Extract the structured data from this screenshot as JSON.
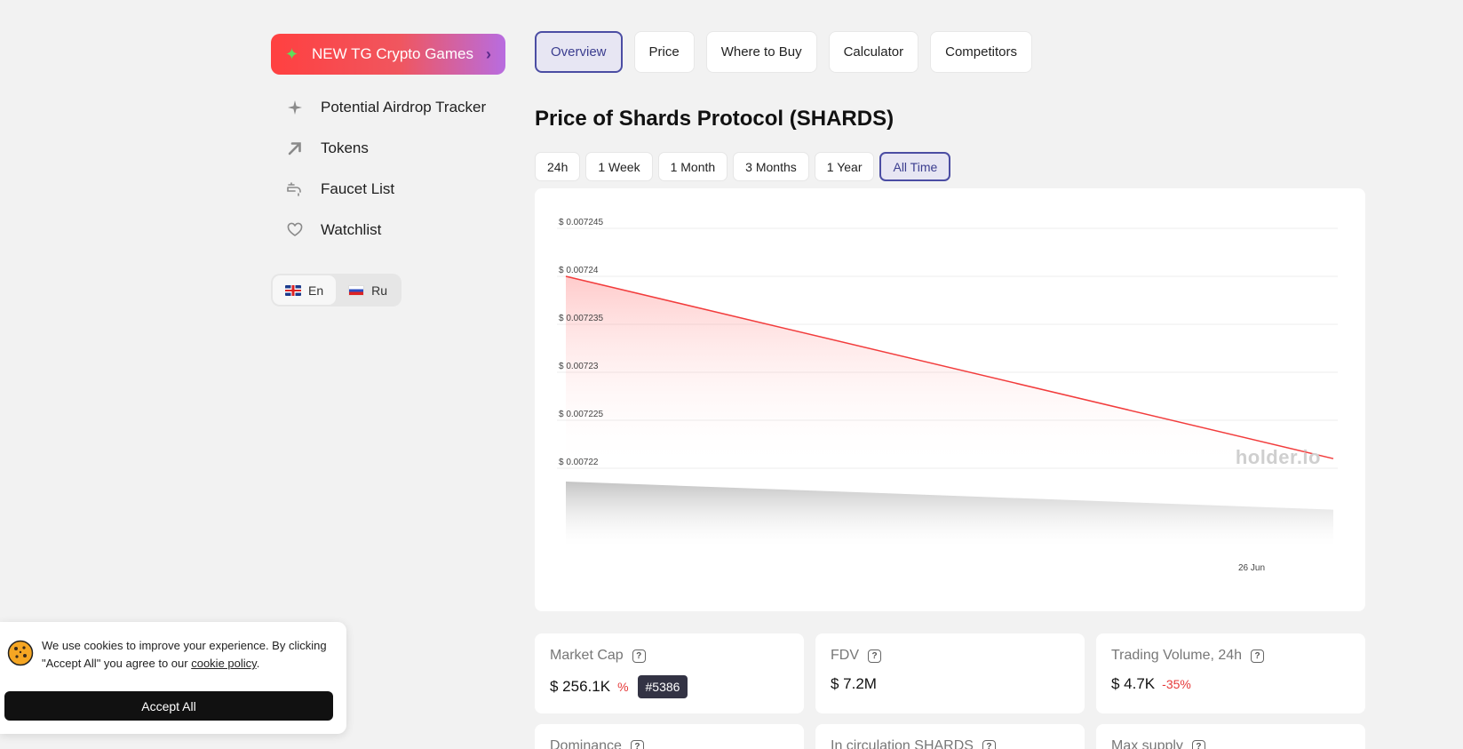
{
  "sidebar": {
    "promo": {
      "label": "NEW TG Crypto Games",
      "icon": "sparkle-icon"
    },
    "items": [
      {
        "label": "Potential Airdrop Tracker",
        "icon": "sparkle-icon"
      },
      {
        "label": "Tokens",
        "icon": "arrow-up-right-icon"
      },
      {
        "label": "Faucet List",
        "icon": "faucet-icon"
      },
      {
        "label": "Watchlist",
        "icon": "heart-icon"
      }
    ],
    "languages": [
      {
        "label": "En",
        "active": true
      },
      {
        "label": "Ru",
        "active": false
      }
    ]
  },
  "tabs": [
    {
      "label": "Overview",
      "active": true
    },
    {
      "label": "Price",
      "active": false
    },
    {
      "label": "Where to Buy",
      "active": false
    },
    {
      "label": "Calculator",
      "active": false
    },
    {
      "label": "Competitors",
      "active": false
    }
  ],
  "page_title": "Price of Shards Protocol (SHARDS)",
  "ranges": [
    {
      "label": "24h",
      "active": false
    },
    {
      "label": "1 Week",
      "active": false
    },
    {
      "label": "1 Month",
      "active": false
    },
    {
      "label": "3 Months",
      "active": false
    },
    {
      "label": "1 Year",
      "active": false
    },
    {
      "label": "All Time",
      "active": true
    }
  ],
  "watermark": "holder.io",
  "chart_data": {
    "type": "area",
    "title": "",
    "x": [
      "",
      "26 Jun"
    ],
    "x_tick_labels": [
      "26 Jun"
    ],
    "y_tick_labels": [
      "$ 0.007245",
      "$ 0.00724",
      "$ 0.007235",
      "$ 0.00723",
      "$ 0.007225",
      "$ 0.00722"
    ],
    "y_ticks": [
      0.007245,
      0.00724,
      0.007235,
      0.00723,
      0.007225,
      0.00722
    ],
    "ylim": [
      0.00722,
      0.007245
    ],
    "series": [
      {
        "values": [
          0.00724,
          0.007221
        ],
        "color": "#f23c3c"
      }
    ],
    "volume": {
      "values": [
        1.0,
        0.56
      ],
      "color": "#c8c8c8"
    },
    "grid": true
  },
  "stats": [
    {
      "label": "Market Cap",
      "value": "$ 256.1K",
      "change": "%",
      "rank": "#5386"
    },
    {
      "label": "FDV",
      "value": "$ 7.2M"
    },
    {
      "label": "Trading Volume, 24h",
      "value": "$ 4.7K",
      "change": "-35%"
    },
    {
      "label": "Dominance"
    },
    {
      "label": "In circulation SHARDS"
    },
    {
      "label": "Max supply"
    }
  ],
  "cookie": {
    "text_before": "We use cookies to improve your experience. By clicking \"Accept All\" you agree to our ",
    "link": "cookie policy",
    "text_after": ".",
    "button": "Accept All"
  }
}
